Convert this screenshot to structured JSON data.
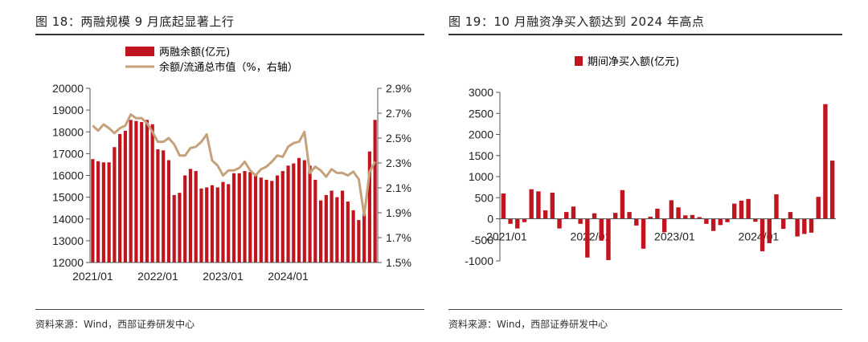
{
  "left": {
    "title": "图 18：两融规模 9 月底起显著上行",
    "source": "资料来源：Wind，西部证券研发中心",
    "legend": {
      "bar": "两融余额(亿元)",
      "line": "余额/流通总市值（%，右轴）"
    },
    "colors": {
      "bar": "#c0141e",
      "line": "#c4a27b"
    }
  },
  "right": {
    "title": "图 19：10 月融资净买入额达到 2024 年高点",
    "source": "资料来源：Wind，西部证券研发中心",
    "legend": {
      "bar": "期间净买入额(亿元)"
    },
    "colors": {
      "bar": "#c0141e"
    }
  },
  "chart_data": [
    {
      "type": "bar",
      "title": "",
      "series": [
        {
          "name": "两融余额(亿元)",
          "axis": "left",
          "values": [
            16750,
            16650,
            16600,
            16600,
            17300,
            17900,
            18050,
            18550,
            18500,
            18450,
            18550,
            18350,
            17200,
            17150,
            16700,
            15100,
            15200,
            16000,
            16300,
            16200,
            15400,
            15450,
            15550,
            15450,
            15700,
            15600,
            16100,
            16100,
            16200,
            16150,
            16050,
            15900,
            15800,
            15750,
            16000,
            16200,
            16450,
            16550,
            16800,
            16700,
            16450,
            15800,
            14850,
            15100,
            15300,
            15000,
            15300,
            14800,
            14400,
            13950,
            14250,
            17100,
            18550
          ]
        },
        {
          "name": "余额/流通总市值（%，右轴）",
          "type": "line",
          "axis": "right",
          "values": [
            2.6,
            2.56,
            2.61,
            2.58,
            2.54,
            2.58,
            2.6,
            2.69,
            2.66,
            2.66,
            2.62,
            2.55,
            2.47,
            2.47,
            2.5,
            2.45,
            2.36,
            2.36,
            2.42,
            2.43,
            2.47,
            2.53,
            2.32,
            2.28,
            2.2,
            2.24,
            2.24,
            2.26,
            2.31,
            2.24,
            2.2,
            2.25,
            2.27,
            2.31,
            2.36,
            2.35,
            2.43,
            2.46,
            2.47,
            2.55,
            2.22,
            2.27,
            2.24,
            2.19,
            2.25,
            2.22,
            2.22,
            2.2,
            2.23,
            2.17,
            1.88,
            2.23,
            2.31
          ]
        }
      ],
      "x_tick_labels": [
        "2021/01",
        "2022/01",
        "2023/01",
        "2024/01"
      ],
      "x_tick_index": [
        0,
        12,
        24,
        36
      ],
      "y_left": {
        "ylim": [
          12000,
          20000
        ],
        "ticks": [
          "12000",
          "13000",
          "14000",
          "15000",
          "16000",
          "17000",
          "18000",
          "19000",
          "20000"
        ]
      },
      "y_right": {
        "ylim": [
          1.5,
          2.9
        ],
        "ticks": [
          "1.5%",
          "1.7%",
          "1.9%",
          "2.1%",
          "2.3%",
          "2.5%",
          "2.7%",
          "2.9%"
        ]
      },
      "legend_position": "top-center"
    },
    {
      "type": "bar",
      "title": "",
      "series": [
        {
          "name": "期间净买入额(亿元)",
          "values": [
            600,
            -120,
            -230,
            -80,
            700,
            650,
            200,
            620,
            -230,
            160,
            290,
            -120,
            -920,
            130,
            -520,
            -980,
            140,
            680,
            160,
            -160,
            -710,
            50,
            240,
            -320,
            440,
            270,
            80,
            90,
            40,
            -120,
            -290,
            -150,
            -80,
            360,
            430,
            470,
            -70,
            -770,
            -580,
            580,
            -240,
            160,
            -420,
            -360,
            -330,
            520,
            2720,
            1380
          ]
        }
      ],
      "x_tick_labels": [
        "2021/01",
        "2022/01",
        "2023/01",
        "2024/01"
      ],
      "x_tick_index": [
        0,
        12,
        24,
        36
      ],
      "ylim": [
        -1000,
        3000
      ],
      "y_ticks": [
        "-1000",
        "-500",
        "0",
        "500",
        "1000",
        "1500",
        "2000",
        "2500",
        "3000"
      ],
      "legend_position": "top-center"
    }
  ]
}
